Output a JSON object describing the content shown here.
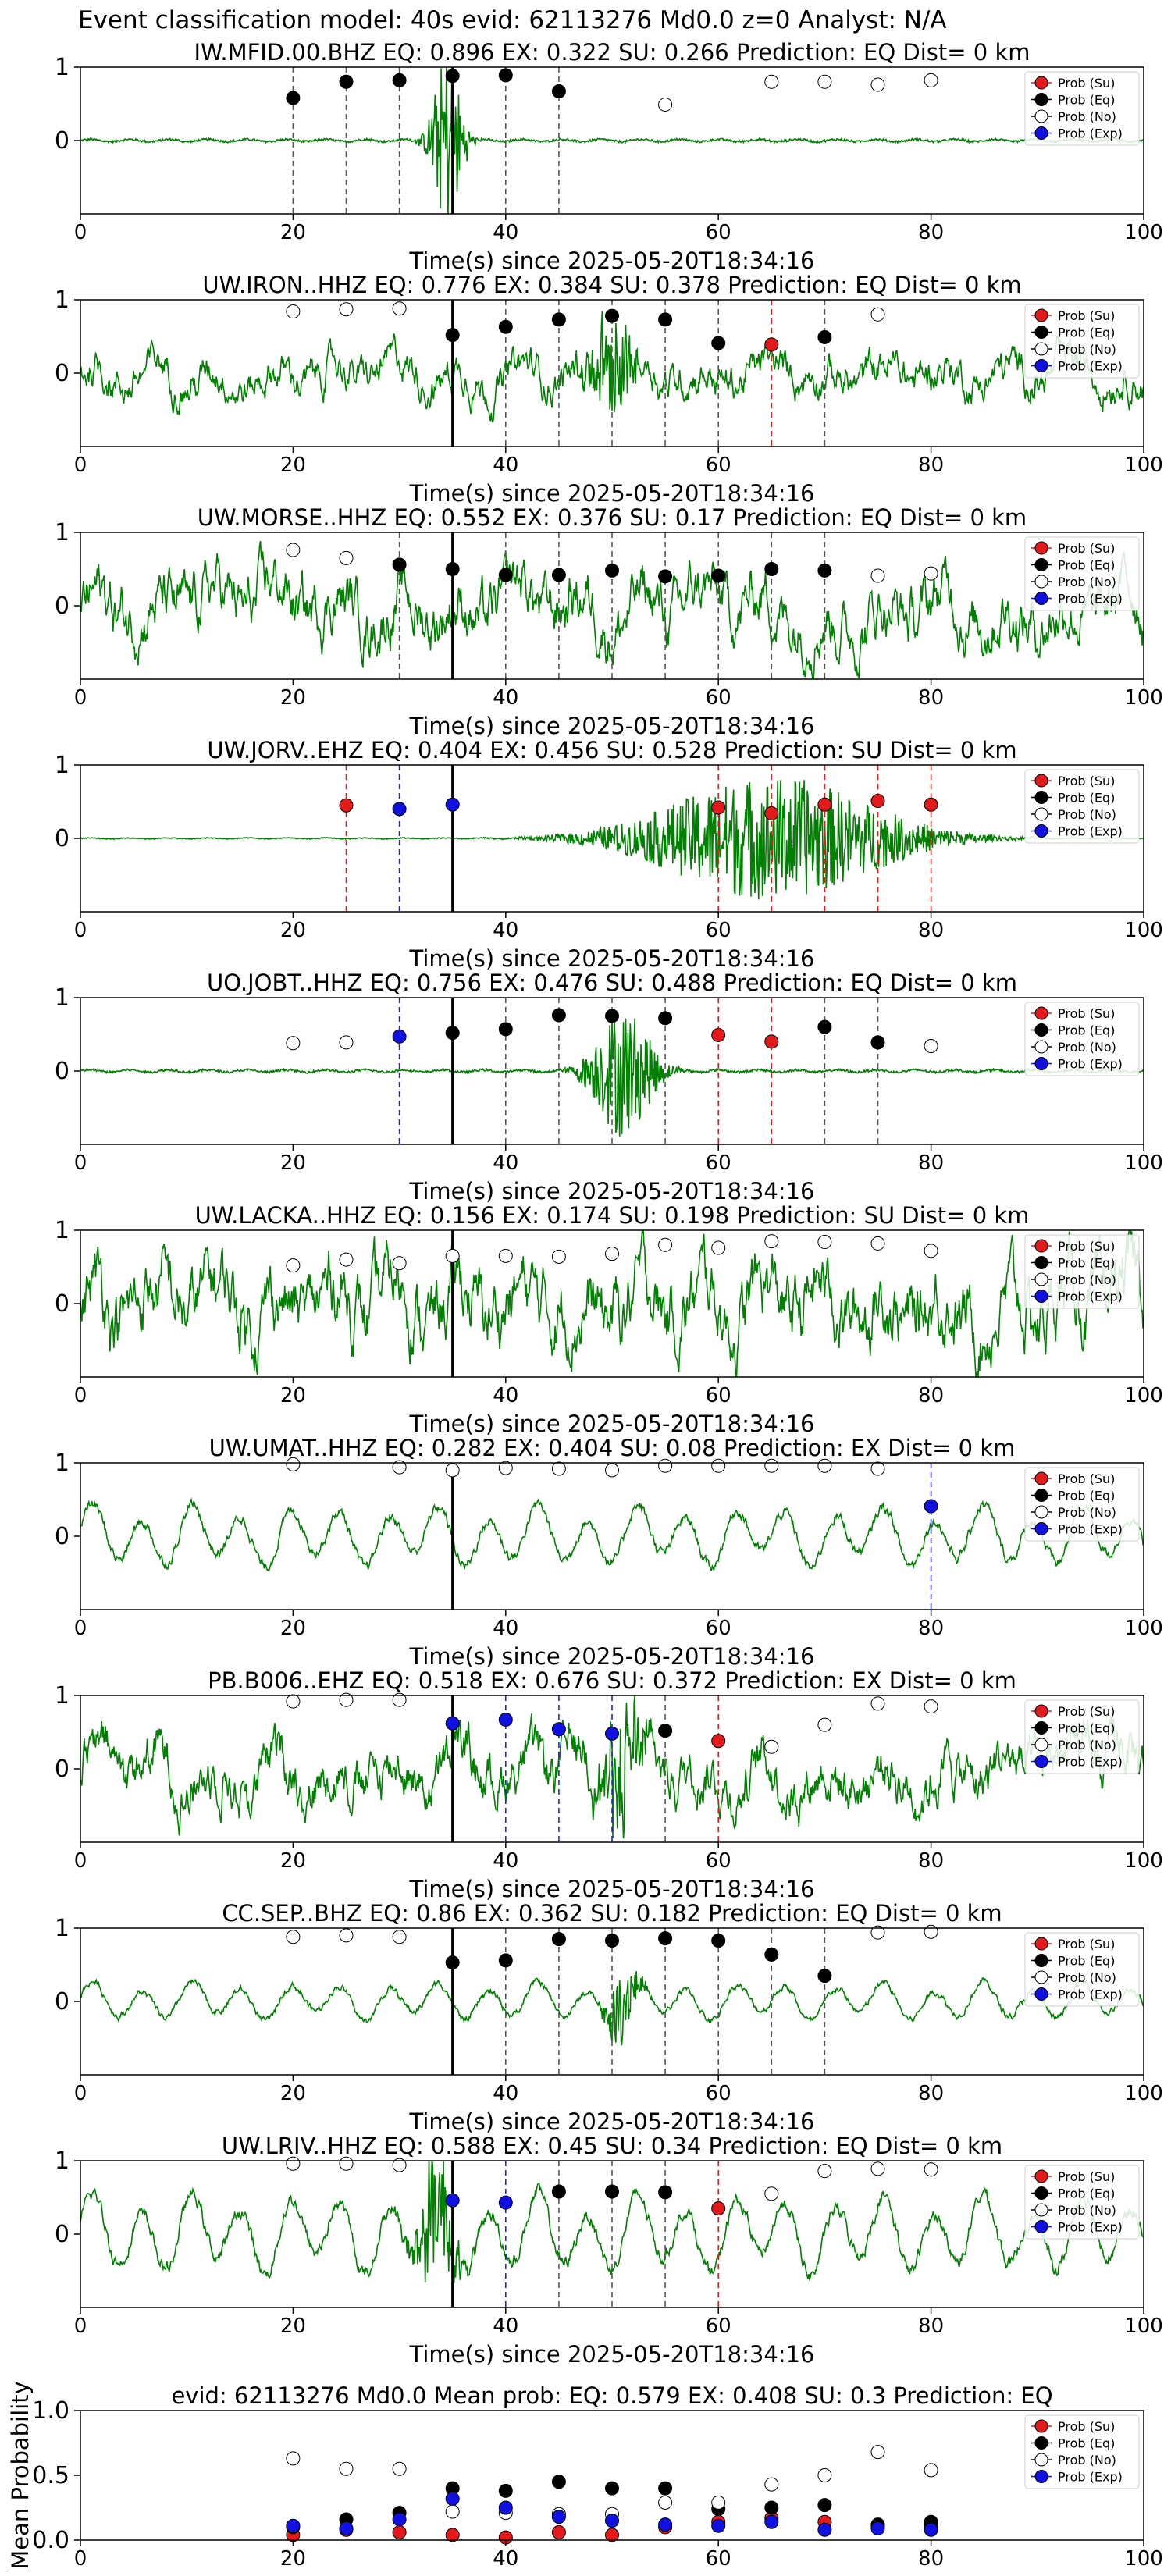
{
  "suptitle": "Event classification model: 40s evid: 62113276 Md0.0 z=0 Analyst: N/A",
  "x_label": "Time(s) since 2025-05-20T18:34:16",
  "legend": {
    "su": "Prob (Su)",
    "eq": "Prob (Eq)",
    "no": "Prob (No)",
    "exp": "Prob (Exp)",
    "placement": "top-right"
  },
  "colors": {
    "waveform": "#008000",
    "su": "#e31a1c",
    "eq": "#000000",
    "no": "#ffffff",
    "exp": "#1010e0",
    "su_line": "#e31a1c",
    "eq_line": "#555555",
    "exp_line": "#2020e0"
  },
  "chart_data": [
    {
      "type": "line",
      "title": "IW.MFID.00.BHZ   EQ: 0.896  EX: 0.322  SU: 0.266   Prediction: EQ    Dist= 0 km",
      "xlabel": "Time(s) since 2025-05-20T18:34:16",
      "xlim": [
        0,
        100
      ],
      "ylim": [
        -1,
        1
      ],
      "x_ticks": [
        0,
        20,
        40,
        60,
        80,
        100
      ],
      "y_ticks": [
        0,
        1
      ],
      "pick_time": 35,
      "waveform": {
        "amplitude": 0.05,
        "style": "quiet",
        "burst": {
          "center": 34.5,
          "width": 1.5,
          "amplitude": 1.2
        }
      },
      "points": [
        {
          "t": 20,
          "p": 0.58,
          "cls": "eq"
        },
        {
          "t": 25,
          "p": 0.8,
          "cls": "eq"
        },
        {
          "t": 30,
          "p": 0.82,
          "cls": "eq"
        },
        {
          "t": 35,
          "p": 0.88,
          "cls": "eq"
        },
        {
          "t": 40,
          "p": 0.89,
          "cls": "eq"
        },
        {
          "t": 45,
          "p": 0.67,
          "cls": "eq"
        },
        {
          "t": 55,
          "p": 0.49,
          "cls": "no"
        },
        {
          "t": 65,
          "p": 0.8,
          "cls": "no"
        },
        {
          "t": 70,
          "p": 0.8,
          "cls": "no"
        },
        {
          "t": 75,
          "p": 0.76,
          "cls": "no"
        },
        {
          "t": 80,
          "p": 0.82,
          "cls": "no"
        }
      ]
    },
    {
      "type": "line",
      "title": "UW.IRON..HHZ   EQ: 0.776  EX: 0.384  SU: 0.378   Prediction: EQ    Dist= 0 km",
      "xlabel": "Time(s) since 2025-05-20T18:34:16",
      "xlim": [
        0,
        100
      ],
      "ylim": [
        -1,
        1
      ],
      "x_ticks": [
        0,
        20,
        40,
        60,
        80,
        100
      ],
      "y_ticks": [
        0,
        1
      ],
      "pick_time": 35,
      "waveform": {
        "amplitude": 0.28,
        "style": "noise",
        "burst": {
          "center": 50,
          "width": 2,
          "amplitude": 0.8
        }
      },
      "points": [
        {
          "t": 20,
          "p": 0.84,
          "cls": "no"
        },
        {
          "t": 25,
          "p": 0.87,
          "cls": "no"
        },
        {
          "t": 30,
          "p": 0.88,
          "cls": "no"
        },
        {
          "t": 35,
          "p": 0.52,
          "cls": "eq"
        },
        {
          "t": 40,
          "p": 0.63,
          "cls": "eq"
        },
        {
          "t": 45,
          "p": 0.73,
          "cls": "eq"
        },
        {
          "t": 50,
          "p": 0.78,
          "cls": "eq"
        },
        {
          "t": 55,
          "p": 0.73,
          "cls": "eq"
        },
        {
          "t": 60,
          "p": 0.41,
          "cls": "eq"
        },
        {
          "t": 65,
          "p": 0.39,
          "cls": "su"
        },
        {
          "t": 70,
          "p": 0.49,
          "cls": "eq"
        },
        {
          "t": 75,
          "p": 0.8,
          "cls": "no"
        }
      ]
    },
    {
      "type": "line",
      "title": "UW.MORSE..HHZ   EQ: 0.552  EX: 0.376  SU: 0.17   Prediction: EQ    Dist= 0 km",
      "xlabel": "Time(s) since 2025-05-20T18:34:16",
      "xlim": [
        0,
        100
      ],
      "ylim": [
        -1,
        1
      ],
      "x_ticks": [
        0,
        20,
        40,
        60,
        80,
        100
      ],
      "y_ticks": [
        0,
        1
      ],
      "pick_time": 35,
      "waveform": {
        "amplitude": 0.45,
        "style": "noise"
      },
      "points": [
        {
          "t": 20,
          "p": 0.76,
          "cls": "no"
        },
        {
          "t": 25,
          "p": 0.65,
          "cls": "no"
        },
        {
          "t": 30,
          "p": 0.56,
          "cls": "eq"
        },
        {
          "t": 35,
          "p": 0.5,
          "cls": "eq"
        },
        {
          "t": 40,
          "p": 0.42,
          "cls": "eq"
        },
        {
          "t": 45,
          "p": 0.42,
          "cls": "eq"
        },
        {
          "t": 50,
          "p": 0.48,
          "cls": "eq"
        },
        {
          "t": 55,
          "p": 0.4,
          "cls": "eq"
        },
        {
          "t": 60,
          "p": 0.41,
          "cls": "eq"
        },
        {
          "t": 65,
          "p": 0.5,
          "cls": "eq"
        },
        {
          "t": 70,
          "p": 0.48,
          "cls": "eq"
        },
        {
          "t": 75,
          "p": 0.41,
          "cls": "no"
        },
        {
          "t": 80,
          "p": 0.44,
          "cls": "no"
        }
      ]
    },
    {
      "type": "line",
      "title": "UW.JORV..EHZ   EQ: 0.404  EX: 0.456  SU: 0.528   Prediction: SU    Dist= 0 km",
      "xlabel": "Time(s) since 2025-05-20T18:34:16",
      "xlim": [
        0,
        100
      ],
      "ylim": [
        -1,
        1
      ],
      "x_ticks": [
        0,
        20,
        40,
        60,
        80,
        100
      ],
      "y_ticks": [
        0,
        1
      ],
      "pick_time": 35,
      "waveform": {
        "amplitude": 0.02,
        "style": "quiet",
        "burst": {
          "center": 65,
          "width": 12,
          "amplitude": 0.85
        }
      },
      "points": [
        {
          "t": 25,
          "p": 0.45,
          "cls": "su"
        },
        {
          "t": 30,
          "p": 0.4,
          "cls": "exp"
        },
        {
          "t": 35,
          "p": 0.46,
          "cls": "exp"
        },
        {
          "t": 60,
          "p": 0.42,
          "cls": "su"
        },
        {
          "t": 65,
          "p": 0.34,
          "cls": "su"
        },
        {
          "t": 70,
          "p": 0.46,
          "cls": "su"
        },
        {
          "t": 75,
          "p": 0.51,
          "cls": "su"
        },
        {
          "t": 80,
          "p": 0.46,
          "cls": "su"
        }
      ]
    },
    {
      "type": "line",
      "title": "UO.JOBT..HHZ   EQ: 0.756  EX: 0.476  SU: 0.488   Prediction: EQ    Dist= 0 km",
      "xlabel": "Time(s) since 2025-05-20T18:34:16",
      "xlim": [
        0,
        100
      ],
      "ylim": [
        -1,
        1
      ],
      "x_ticks": [
        0,
        20,
        40,
        60,
        80,
        100
      ],
      "y_ticks": [
        0,
        1
      ],
      "pick_time": 35,
      "waveform": {
        "amplitude": 0.05,
        "style": "quiet",
        "burst": {
          "center": 51,
          "width": 3,
          "amplitude": 0.9
        }
      },
      "points": [
        {
          "t": 20,
          "p": 0.38,
          "cls": "no"
        },
        {
          "t": 25,
          "p": 0.39,
          "cls": "no"
        },
        {
          "t": 30,
          "p": 0.47,
          "cls": "exp"
        },
        {
          "t": 35,
          "p": 0.52,
          "cls": "eq"
        },
        {
          "t": 40,
          "p": 0.57,
          "cls": "eq"
        },
        {
          "t": 45,
          "p": 0.76,
          "cls": "eq"
        },
        {
          "t": 50,
          "p": 0.75,
          "cls": "eq"
        },
        {
          "t": 55,
          "p": 0.72,
          "cls": "eq"
        },
        {
          "t": 60,
          "p": 0.49,
          "cls": "su"
        },
        {
          "t": 65,
          "p": 0.4,
          "cls": "su"
        },
        {
          "t": 70,
          "p": 0.6,
          "cls": "eq"
        },
        {
          "t": 75,
          "p": 0.39,
          "cls": "eq"
        },
        {
          "t": 80,
          "p": 0.34,
          "cls": "no"
        }
      ]
    },
    {
      "type": "line",
      "title": "UW.LACKA..HHZ   EQ: 0.156  EX: 0.174  SU: 0.198   Prediction: SU    Dist= 0 km",
      "xlabel": "Time(s) since 2025-05-20T18:34:16",
      "xlim": [
        0,
        100
      ],
      "ylim": [
        -1,
        1
      ],
      "x_ticks": [
        0,
        20,
        40,
        60,
        80,
        100
      ],
      "y_ticks": [
        0,
        1
      ],
      "pick_time": 35,
      "waveform": {
        "amplitude": 0.55,
        "style": "noise"
      },
      "points": [
        {
          "t": 20,
          "p": 0.52,
          "cls": "no"
        },
        {
          "t": 25,
          "p": 0.6,
          "cls": "no"
        },
        {
          "t": 30,
          "p": 0.55,
          "cls": "no"
        },
        {
          "t": 35,
          "p": 0.65,
          "cls": "no"
        },
        {
          "t": 40,
          "p": 0.65,
          "cls": "no"
        },
        {
          "t": 45,
          "p": 0.64,
          "cls": "no"
        },
        {
          "t": 50,
          "p": 0.68,
          "cls": "no"
        },
        {
          "t": 55,
          "p": 0.8,
          "cls": "no"
        },
        {
          "t": 60,
          "p": 0.76,
          "cls": "no"
        },
        {
          "t": 65,
          "p": 0.85,
          "cls": "no"
        },
        {
          "t": 70,
          "p": 0.84,
          "cls": "no"
        },
        {
          "t": 75,
          "p": 0.82,
          "cls": "no"
        },
        {
          "t": 80,
          "p": 0.72,
          "cls": "no"
        }
      ]
    },
    {
      "type": "line",
      "title": "UW.UMAT..HHZ   EQ: 0.282  EX: 0.404  SU: 0.08   Prediction: EX    Dist= 0 km",
      "xlabel": "Time(s) since 2025-05-20T18:34:16",
      "xlim": [
        0,
        100
      ],
      "ylim": [
        -1,
        1
      ],
      "x_ticks": [
        0,
        20,
        40,
        60,
        80,
        100
      ],
      "y_ticks": [
        0,
        1
      ],
      "pick_time": 35,
      "waveform": {
        "amplitude": 0.35,
        "style": "swell"
      },
      "points": [
        {
          "t": 20,
          "p": 0.98,
          "cls": "no"
        },
        {
          "t": 30,
          "p": 0.94,
          "cls": "no"
        },
        {
          "t": 35,
          "p": 0.9,
          "cls": "no"
        },
        {
          "t": 40,
          "p": 0.93,
          "cls": "no"
        },
        {
          "t": 45,
          "p": 0.92,
          "cls": "no"
        },
        {
          "t": 50,
          "p": 0.9,
          "cls": "no"
        },
        {
          "t": 55,
          "p": 0.96,
          "cls": "no"
        },
        {
          "t": 60,
          "p": 0.96,
          "cls": "no"
        },
        {
          "t": 65,
          "p": 0.96,
          "cls": "no"
        },
        {
          "t": 70,
          "p": 0.96,
          "cls": "no"
        },
        {
          "t": 75,
          "p": 0.92,
          "cls": "no"
        },
        {
          "t": 80,
          "p": 0.41,
          "cls": "exp"
        }
      ]
    },
    {
      "type": "line",
      "title": "PB.B006..EHZ   EQ: 0.518  EX: 0.676  SU: 0.372   Prediction: EX    Dist= 0 km",
      "xlabel": "Time(s) since 2025-05-20T18:34:16",
      "xlim": [
        0,
        100
      ],
      "ylim": [
        -1,
        1
      ],
      "x_ticks": [
        0,
        20,
        40,
        60,
        80,
        100
      ],
      "y_ticks": [
        0,
        1
      ],
      "pick_time": 35,
      "waveform": {
        "amplitude": 0.4,
        "style": "noise",
        "burst": {
          "center": 51,
          "width": 2,
          "amplitude": 0.8
        }
      },
      "points": [
        {
          "t": 20,
          "p": 0.92,
          "cls": "no"
        },
        {
          "t": 25,
          "p": 0.94,
          "cls": "no"
        },
        {
          "t": 30,
          "p": 0.94,
          "cls": "no"
        },
        {
          "t": 35,
          "p": 0.62,
          "cls": "exp"
        },
        {
          "t": 40,
          "p": 0.67,
          "cls": "exp"
        },
        {
          "t": 45,
          "p": 0.54,
          "cls": "exp"
        },
        {
          "t": 50,
          "p": 0.48,
          "cls": "exp"
        },
        {
          "t": 55,
          "p": 0.52,
          "cls": "eq"
        },
        {
          "t": 60,
          "p": 0.38,
          "cls": "su"
        },
        {
          "t": 65,
          "p": 0.3,
          "cls": "no"
        },
        {
          "t": 70,
          "p": 0.6,
          "cls": "no"
        },
        {
          "t": 75,
          "p": 0.89,
          "cls": "no"
        },
        {
          "t": 80,
          "p": 0.85,
          "cls": "no"
        }
      ]
    },
    {
      "type": "line",
      "title": "CC.SEP..BHZ   EQ: 0.86  EX: 0.362  SU: 0.182   Prediction: EQ    Dist= 0 km",
      "xlabel": "Time(s) since 2025-05-20T18:34:16",
      "xlim": [
        0,
        100
      ],
      "ylim": [
        -1,
        1
      ],
      "x_ticks": [
        0,
        20,
        40,
        60,
        80,
        100
      ],
      "y_ticks": [
        0,
        1
      ],
      "pick_time": 35,
      "waveform": {
        "amplitude": 0.22,
        "style": "swell",
        "burst": {
          "center": 51,
          "width": 1.5,
          "amplitude": 0.5
        }
      },
      "points": [
        {
          "t": 20,
          "p": 0.88,
          "cls": "no"
        },
        {
          "t": 25,
          "p": 0.9,
          "cls": "no"
        },
        {
          "t": 30,
          "p": 0.88,
          "cls": "no"
        },
        {
          "t": 35,
          "p": 0.53,
          "cls": "eq"
        },
        {
          "t": 40,
          "p": 0.56,
          "cls": "eq"
        },
        {
          "t": 45,
          "p": 0.85,
          "cls": "eq"
        },
        {
          "t": 50,
          "p": 0.83,
          "cls": "eq"
        },
        {
          "t": 55,
          "p": 0.86,
          "cls": "eq"
        },
        {
          "t": 60,
          "p": 0.83,
          "cls": "eq"
        },
        {
          "t": 65,
          "p": 0.64,
          "cls": "eq"
        },
        {
          "t": 70,
          "p": 0.35,
          "cls": "eq"
        },
        {
          "t": 75,
          "p": 0.94,
          "cls": "no"
        },
        {
          "t": 80,
          "p": 0.95,
          "cls": "no"
        }
      ]
    },
    {
      "type": "line",
      "title": "UW.LRIV..HHZ   EQ: 0.588  EX: 0.45  SU: 0.34   Prediction: EQ    Dist= 0 km",
      "xlabel": "Time(s) since 2025-05-20T18:34:16",
      "xlim": [
        0,
        100
      ],
      "ylim": [
        -1,
        1
      ],
      "x_ticks": [
        0,
        20,
        40,
        60,
        80,
        100
      ],
      "y_ticks": [
        0,
        1
      ],
      "pick_time": 35,
      "waveform": {
        "amplitude": 0.45,
        "style": "swell",
        "burst": {
          "center": 33.5,
          "width": 2,
          "amplitude": 0.9
        }
      },
      "points": [
        {
          "t": 20,
          "p": 0.96,
          "cls": "no"
        },
        {
          "t": 25,
          "p": 0.96,
          "cls": "no"
        },
        {
          "t": 30,
          "p": 0.94,
          "cls": "no"
        },
        {
          "t": 35,
          "p": 0.46,
          "cls": "exp"
        },
        {
          "t": 40,
          "p": 0.43,
          "cls": "exp"
        },
        {
          "t": 45,
          "p": 0.58,
          "cls": "eq"
        },
        {
          "t": 50,
          "p": 0.58,
          "cls": "eq"
        },
        {
          "t": 55,
          "p": 0.57,
          "cls": "eq"
        },
        {
          "t": 60,
          "p": 0.35,
          "cls": "su"
        },
        {
          "t": 65,
          "p": 0.55,
          "cls": "no"
        },
        {
          "t": 70,
          "p": 0.86,
          "cls": "no"
        },
        {
          "t": 75,
          "p": 0.89,
          "cls": "no"
        },
        {
          "t": 80,
          "p": 0.88,
          "cls": "no"
        }
      ]
    },
    {
      "type": "scatter",
      "title": "evid: 62113276  Md0.0   Mean prob:   EQ: 0.579  EX: 0.408  SU: 0.3   Prediction: EQ",
      "xlabel": "",
      "ylabel": "Mean Probability",
      "xlim": [
        0,
        100
      ],
      "ylim": [
        0,
        1
      ],
      "x_ticks": [
        0,
        20,
        40,
        60,
        80,
        100
      ],
      "y_ticks": [
        0.0,
        0.5,
        1.0
      ],
      "y_tick_labels": [
        "0.0",
        "0.5",
        "1.0"
      ],
      "series": [
        {
          "name": "Prob (Su)",
          "cls": "su",
          "x": [
            20,
            25,
            30,
            35,
            40,
            45,
            50,
            55,
            60,
            65,
            70,
            75,
            80
          ],
          "y": [
            0.04,
            0.08,
            0.06,
            0.04,
            0.02,
            0.06,
            0.04,
            0.1,
            0.14,
            0.17,
            0.14,
            0.11,
            0.12
          ]
        },
        {
          "name": "Prob (Eq)",
          "cls": "eq",
          "x": [
            20,
            25,
            30,
            35,
            40,
            45,
            50,
            55,
            60,
            65,
            70,
            75,
            80
          ],
          "y": [
            0.1,
            0.16,
            0.21,
            0.4,
            0.38,
            0.45,
            0.4,
            0.4,
            0.24,
            0.25,
            0.27,
            0.12,
            0.14
          ]
        },
        {
          "name": "Prob (No)",
          "cls": "no",
          "x": [
            20,
            25,
            30,
            35,
            40,
            45,
            50,
            55,
            60,
            65,
            70,
            75,
            80
          ],
          "y": [
            0.63,
            0.55,
            0.55,
            0.22,
            0.21,
            0.2,
            0.2,
            0.29,
            0.29,
            0.43,
            0.5,
            0.68,
            0.54
          ]
        },
        {
          "name": "Prob (Exp)",
          "cls": "exp",
          "x": [
            20,
            25,
            30,
            35,
            40,
            45,
            50,
            55,
            60,
            65,
            70,
            75,
            80
          ],
          "y": [
            0.11,
            0.09,
            0.16,
            0.32,
            0.25,
            0.18,
            0.15,
            0.12,
            0.11,
            0.14,
            0.08,
            0.09,
            0.08
          ]
        }
      ]
    }
  ]
}
